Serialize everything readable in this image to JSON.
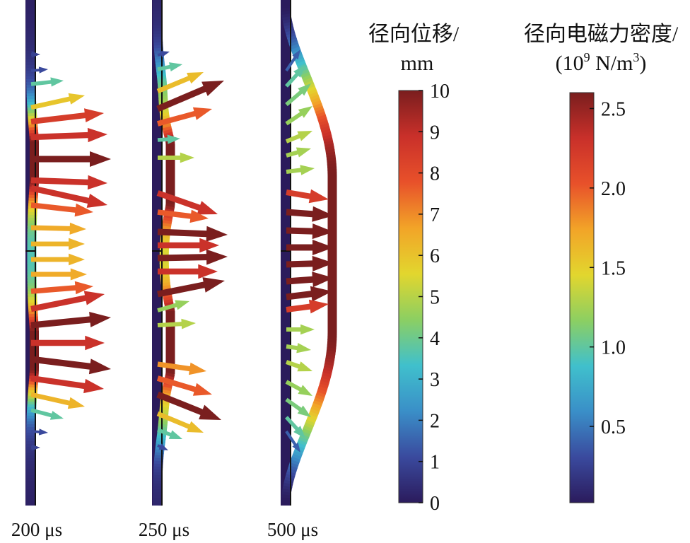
{
  "panels": [
    {
      "time_label": "200 μs"
    },
    {
      "time_label": "250 μs"
    },
    {
      "time_label": "500 μs"
    }
  ],
  "colorbars": [
    {
      "title_line1": "径向位移/",
      "title_line2": "mm",
      "min": 0,
      "max": 10,
      "ticks": [
        "0",
        "1",
        "2",
        "3",
        "4",
        "5",
        "6",
        "7",
        "8",
        "9",
        "10"
      ]
    },
    {
      "title_line1": "径向电磁力密度/",
      "title_line2_prefix": "(10",
      "title_line2_exp": "9",
      "title_line2_mid": " N/m",
      "title_line2_exp2": "3",
      "title_line2_suffix": ")",
      "min": 0.02,
      "max": 2.6,
      "ticks": [
        "0.5",
        "1.0",
        "1.5",
        "2.0",
        "2.5"
      ]
    }
  ],
  "colormap": [
    "#2b1b5c",
    "#3a4a9e",
    "#3a8fc8",
    "#40c0cc",
    "#8ccf62",
    "#e2d62e",
    "#f2a428",
    "#e8512a",
    "#c9302a",
    "#7a1e1e"
  ]
}
